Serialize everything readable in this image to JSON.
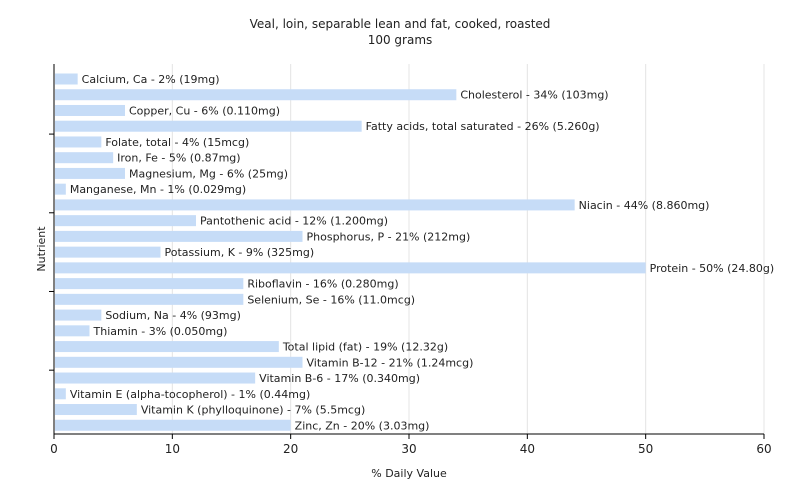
{
  "chart_data": {
    "type": "bar",
    "orientation": "horizontal",
    "title": "Veal, loin, separable lean and fat, cooked, roasted",
    "subtitle": "100 grams",
    "xlabel": "% Daily Value",
    "ylabel": "Nutrient",
    "xlim": [
      0,
      60
    ],
    "xticks": [
      0,
      10,
      20,
      30,
      40,
      50,
      60
    ],
    "grid": true,
    "bar_color": "#c6dcf7",
    "categories": [
      "Calcium, Ca",
      "Cholesterol",
      "Copper, Cu",
      "Fatty acids, total saturated",
      "Folate, total",
      "Iron, Fe",
      "Magnesium, Mg",
      "Manganese, Mn",
      "Niacin",
      "Pantothenic acid",
      "Phosphorus, P",
      "Potassium, K",
      "Protein",
      "Riboflavin",
      "Selenium, Se",
      "Sodium, Na",
      "Thiamin",
      "Total lipid (fat)",
      "Vitamin B-12",
      "Vitamin B-6",
      "Vitamin E (alpha-tocopherol)",
      "Vitamin K (phylloquinone)",
      "Zinc, Zn"
    ],
    "values": [
      2,
      34,
      6,
      26,
      4,
      5,
      6,
      1,
      44,
      12,
      21,
      9,
      50,
      16,
      16,
      4,
      3,
      19,
      21,
      17,
      1,
      7,
      20
    ],
    "labels": [
      "Calcium, Ca - 2% (19mg)",
      "Cholesterol - 34% (103mg)",
      "Copper, Cu - 6% (0.110mg)",
      "Fatty acids, total saturated - 26% (5.260g)",
      "Folate, total - 4% (15mcg)",
      "Iron, Fe - 5% (0.87mg)",
      "Magnesium, Mg - 6% (25mg)",
      "Manganese, Mn - 1% (0.029mg)",
      "Niacin - 44% (8.860mg)",
      "Pantothenic acid - 12% (1.200mg)",
      "Phosphorus, P - 21% (212mg)",
      "Potassium, K - 9% (325mg)",
      "Protein - 50% (24.80g)",
      "Riboflavin - 16% (0.280mg)",
      "Selenium, Se - 16% (11.0mcg)",
      "Sodium, Na - 4% (93mg)",
      "Thiamin - 3% (0.050mg)",
      "Total lipid (fat) - 19% (12.32g)",
      "Vitamin B-12 - 21% (1.24mcg)",
      "Vitamin B-6 - 17% (0.340mg)",
      "Vitamin E (alpha-tocopherol) - 1% (0.44mg)",
      "Vitamin K (phylloquinone) - 7% (5.5mcg)",
      "Zinc, Zn - 20% (3.03mg)"
    ]
  }
}
